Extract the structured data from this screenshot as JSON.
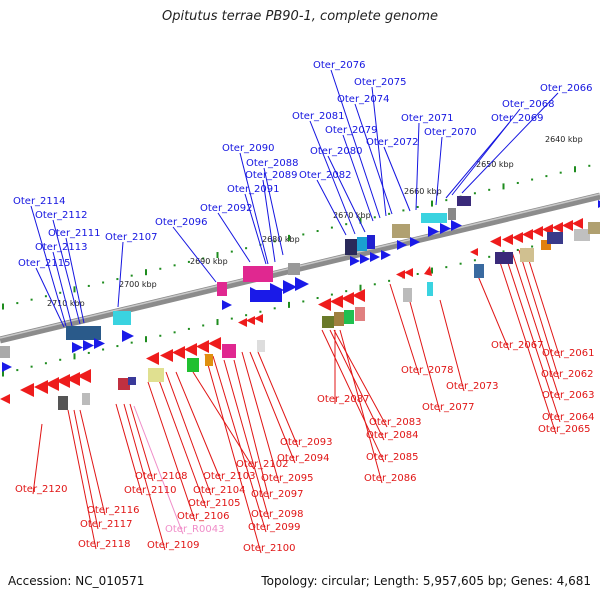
{
  "title": "Opitutus terrae PB90-1, complete genome",
  "footer": {
    "accession": "Accession: NC_010571",
    "summary": "Topology: circular; Length: 5,957,605 bp; Genes: 4,681"
  },
  "colors": {
    "forward_label": "#1515e0",
    "reverse_label": "#e01515",
    "rna_label": "#f08cc8",
    "backbone": "#8c8c8c",
    "tick": "#1e8c1e",
    "forward_gene": "#1a1ae8",
    "reverse_gene": "#ee1c1c"
  },
  "ticks": [
    "2640 kbp",
    "2650 kbp",
    "2660 kbp",
    "2670 kbp",
    "2680 kbp",
    "2690 kbp",
    "2700 kbp",
    "2710 kbp"
  ],
  "forward_labels": [
    "Oter_2066",
    "Oter_2068",
    "Oter_2069",
    "Oter_2070",
    "Oter_2071",
    "Oter_2072",
    "Oter_2074",
    "Oter_2075",
    "Oter_2076",
    "Oter_2079",
    "Oter_2080",
    "Oter_2081",
    "Oter_2082",
    "Oter_2088",
    "Oter_2089",
    "Oter_2090",
    "Oter_2091",
    "Oter_2092",
    "Oter_2096",
    "Oter_2107",
    "Oter_2111",
    "Oter_2112",
    "Oter_2113",
    "Oter_2114",
    "Oter_2115"
  ],
  "reverse_labels": [
    "Oter_2061",
    "Oter_2062",
    "Oter_2063",
    "Oter_2064",
    "Oter_2065",
    "Oter_2067",
    "Oter_2073",
    "Oter_2077",
    "Oter_2078",
    "Oter_2083",
    "Oter_2084",
    "Oter_2085",
    "Oter_2086",
    "Oter_2087",
    "Oter_2093",
    "Oter_2094",
    "Oter_2095",
    "Oter_2097",
    "Oter_2098",
    "Oter_2099",
    "Oter_2100",
    "Oter_2102",
    "Oter_2103",
    "Oter_2104",
    "Oter_2105",
    "Oter_2106",
    "Oter_2108",
    "Oter_2109",
    "Oter_2110",
    "Oter_2116",
    "Oter_2117",
    "Oter_2118",
    "Oter_2120"
  ],
  "rna_labels": [
    "Oter_R0043"
  ]
}
